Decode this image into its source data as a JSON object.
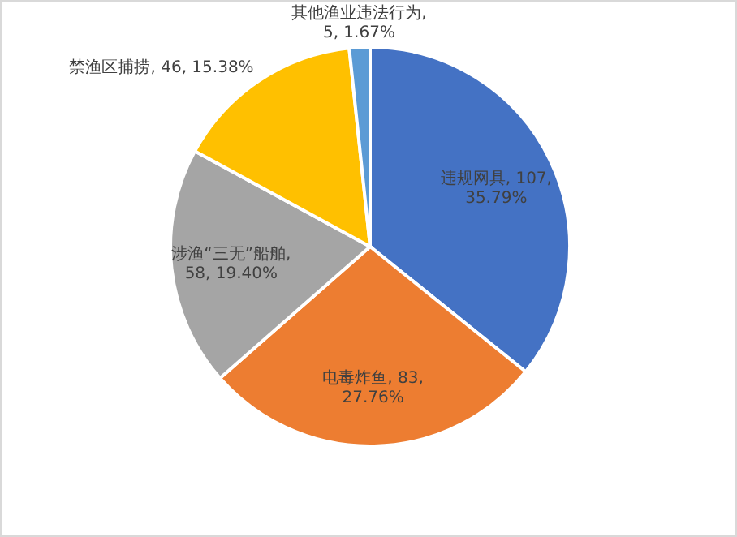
{
  "chart_data": {
    "type": "pie",
    "categories": [
      "违规网具",
      "电毒炸鱼",
      "涉渔“三无”船舶",
      "禁渔区捕捞",
      "其他渔业违法行为"
    ],
    "values": [
      107,
      83,
      58,
      46,
      5
    ],
    "value_labels": [
      ", 107, 35.79%",
      ", 83, 27.76%",
      ", 58, 19.40%",
      ", 46, 15.38%",
      ", 5, 1.67%"
    ],
    "colors": [
      "#4472c4",
      "#ed7d31",
      "#a5a5a5",
      "#ffc000",
      "#5b9bd5"
    ]
  }
}
